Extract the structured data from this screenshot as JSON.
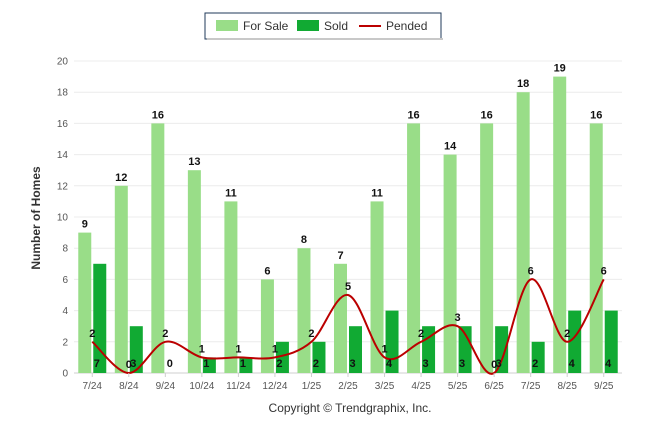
{
  "chart_data": {
    "type": "bar",
    "ylabel": "Number of Homes",
    "ylim": [
      0,
      20
    ],
    "yticks": [
      0,
      2,
      4,
      6,
      8,
      10,
      12,
      14,
      16,
      18,
      20
    ],
    "categories": [
      "7/24",
      "8/24",
      "9/24",
      "10/24",
      "11/24",
      "12/24",
      "1/25",
      "2/25",
      "3/25",
      "4/25",
      "5/25",
      "6/25",
      "7/25",
      "8/25",
      "9/25"
    ],
    "series": [
      {
        "name": "For Sale",
        "kind": "bar",
        "color": "#99dd88",
        "values": [
          9,
          12,
          16,
          13,
          11,
          6,
          8,
          7,
          11,
          16,
          14,
          16,
          18,
          19,
          16
        ]
      },
      {
        "name": "Sold",
        "kind": "bar",
        "color": "#11aa33",
        "values": [
          7,
          3,
          0,
          1,
          1,
          2,
          2,
          3,
          4,
          3,
          3,
          3,
          2,
          4,
          4
        ]
      },
      {
        "name": "Pended",
        "kind": "line",
        "color": "#bb0000",
        "values": [
          2,
          0,
          2,
          1,
          1,
          1,
          2,
          5,
          1,
          2,
          3,
          0,
          6,
          2,
          6
        ]
      }
    ],
    "credit": "Copyright © Trendgraphix, Inc."
  }
}
